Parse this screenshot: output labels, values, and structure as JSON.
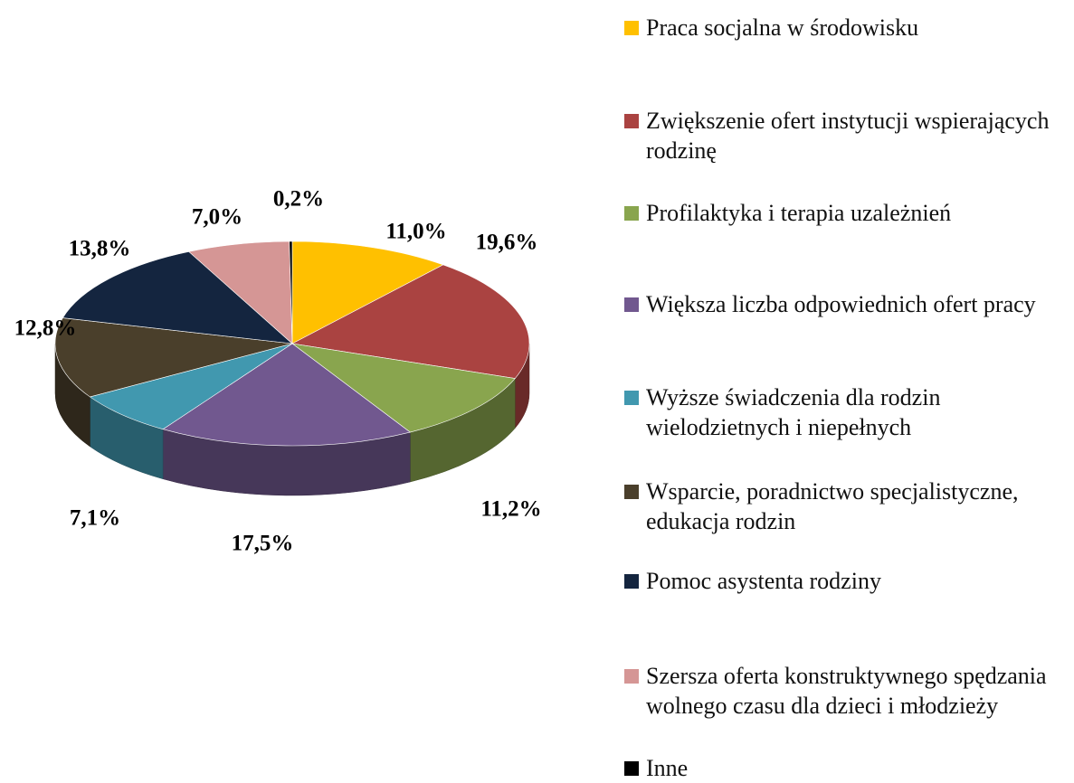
{
  "chart_data": {
    "type": "pie",
    "categories": [
      "Praca socjalna w środowisku",
      "Zwiększenie ofert instytucji wspierających rodzinę",
      "Profilaktyka i terapia uzależnień",
      "Większa liczba odpowiednich ofert pracy",
      "Wyższe świadczenia dla rodzin wielodzietnych i niepełnych",
      "Wsparcie, poradnictwo specjalistyczne, edukacja rodzin",
      "Pomoc asystenta rodziny",
      "Szersza oferta konstruktywnego spędzania wolnego czasu dla dzieci i młodzieży",
      "Inne"
    ],
    "values": [
      11.0,
      19.6,
      11.2,
      17.5,
      7.1,
      12.8,
      13.8,
      7.0,
      0.2
    ],
    "value_labels": [
      "11,0%",
      "19,6%",
      "11,2%",
      "17,5%",
      "7,1%",
      "12,8%",
      "13,8%",
      "7,0%",
      "0,2%"
    ],
    "colors": [
      "#FFC000",
      "#AA4341",
      "#89A54E",
      "#71588F",
      "#4198AF",
      "#4A3F2B",
      "#14253F",
      "#D59695",
      "#000000"
    ],
    "legend": "right"
  }
}
